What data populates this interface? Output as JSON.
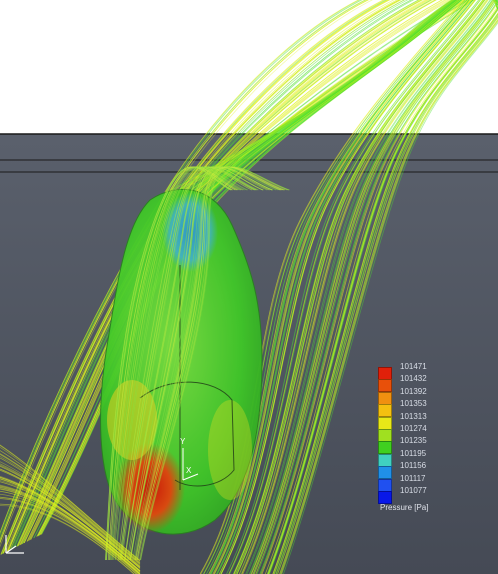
{
  "legend": {
    "title": "Pressure [Pa]",
    "ticks": [
      "101471",
      "101432",
      "101392",
      "101353",
      "101313",
      "101274",
      "101235",
      "101195",
      "101156",
      "101117",
      "101077"
    ],
    "colors": [
      "#e0200a",
      "#e8500a",
      "#f09010",
      "#f4c010",
      "#e8e818",
      "#a0e020",
      "#40d020",
      "#40d0c0",
      "#2090e8",
      "#2050f0",
      "#0818e8"
    ]
  },
  "axes": {
    "y_label": "Y",
    "x_label": "X"
  },
  "scene_colors": {
    "background_top": "#ffffff",
    "floor": "#505562",
    "streamline_yellow": "#e0f020",
    "streamline_green": "#50e030",
    "low_pressure": "#3aa0e0",
    "high_pressure": "#d03010"
  }
}
